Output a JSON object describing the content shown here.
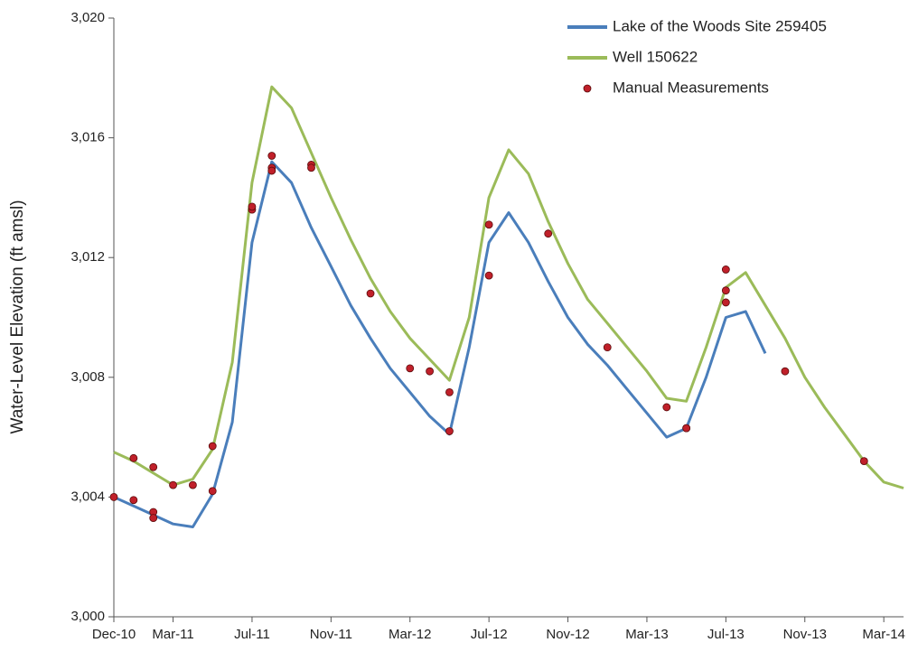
{
  "chart_data": {
    "type": "line",
    "y_label": "Water-Level Elevation (ft amsl)",
    "x": [
      "2010-12",
      "2011-01",
      "2011-02",
      "2011-03",
      "2011-04",
      "2011-05",
      "2011-06",
      "2011-07",
      "2011-08",
      "2011-09",
      "2011-10",
      "2011-11",
      "2011-12",
      "2012-01",
      "2012-02",
      "2012-03",
      "2012-04",
      "2012-05",
      "2012-06",
      "2012-07",
      "2012-08",
      "2012-09",
      "2012-10",
      "2012-11",
      "2012-12",
      "2013-01",
      "2013-02",
      "2013-03",
      "2013-04",
      "2013-05",
      "2013-06",
      "2013-07",
      "2013-08",
      "2013-09",
      "2013-10",
      "2013-11",
      "2013-12",
      "2014-01",
      "2014-02",
      "2014-03",
      "2014-04"
    ],
    "xlim": [
      "2010-12",
      "2014-04"
    ],
    "xticks": [
      {
        "value": "2010-12",
        "label": "Dec-10"
      },
      {
        "value": "2011-03",
        "label": "Mar-11"
      },
      {
        "value": "2011-07",
        "label": "Jul-11"
      },
      {
        "value": "2011-11",
        "label": "Nov-11"
      },
      {
        "value": "2012-03",
        "label": "Mar-12"
      },
      {
        "value": "2012-07",
        "label": "Jul-12"
      },
      {
        "value": "2012-11",
        "label": "Nov-12"
      },
      {
        "value": "2013-03",
        "label": "Mar-13"
      },
      {
        "value": "2013-07",
        "label": "Jul-13"
      },
      {
        "value": "2013-11",
        "label": "Nov-13"
      },
      {
        "value": "2014-03",
        "label": "Mar-14"
      }
    ],
    "ylim": [
      3000,
      3020
    ],
    "yticks": [
      {
        "value": 3000,
        "label": "3,000"
      },
      {
        "value": 3004,
        "label": "3,004"
      },
      {
        "value": 3008,
        "label": "3,008"
      },
      {
        "value": 3012,
        "label": "3,012"
      },
      {
        "value": 3016,
        "label": "3,016"
      },
      {
        "value": 3020,
        "label": "3,020"
      }
    ],
    "legend": "top-right",
    "series": [
      {
        "name": "Lake of the Woods Site 259405",
        "color": "#4a7ebb",
        "values": [
          3004.0,
          3003.7,
          3003.4,
          3003.1,
          3003.0,
          3004.1,
          3006.5,
          3012.5,
          3015.2,
          3014.5,
          3013.0,
          3011.7,
          3010.4,
          3009.3,
          3008.3,
          3007.5,
          3006.7,
          3006.1,
          3009.0,
          3012.5,
          3013.5,
          3012.5,
          3011.2,
          3010.0,
          3009.1,
          3008.4,
          3007.6,
          3006.8,
          3006.0,
          3006.3,
          3008.0,
          3010.0,
          3010.2,
          3008.8,
          null,
          null,
          null,
          null,
          null,
          null,
          null
        ]
      },
      {
        "name": "Well 150622",
        "color": "#9bbb59",
        "values": [
          3005.5,
          3005.2,
          3004.8,
          3004.4,
          3004.6,
          3005.6,
          3008.5,
          3014.5,
          3017.7,
          3017.0,
          3015.5,
          3014.0,
          3012.6,
          3011.3,
          3010.2,
          3009.3,
          3008.6,
          3007.9,
          3010.0,
          3014.0,
          3015.6,
          3014.8,
          3013.2,
          3011.8,
          3010.6,
          3009.8,
          3009.0,
          3008.2,
          3007.3,
          3007.2,
          3009.0,
          3011.0,
          3011.5,
          3010.4,
          3009.3,
          3008.0,
          3007.0,
          3006.1,
          3005.2,
          3004.5,
          3004.3
        ]
      },
      {
        "name": "Manual Measurements",
        "type": "scatter",
        "color": "#c0202a",
        "x": [
          "2010-12",
          "2011-01",
          "2011-01",
          "2011-02",
          "2011-02",
          "2011-02",
          "2011-03",
          "2011-04",
          "2011-05",
          "2011-05",
          "2011-07",
          "2011-07",
          "2011-08",
          "2011-08",
          "2011-08",
          "2011-10",
          "2011-10",
          "2012-01",
          "2012-03",
          "2012-04",
          "2012-05",
          "2012-05",
          "2012-07",
          "2012-07",
          "2012-10",
          "2013-01",
          "2013-04",
          "2013-05",
          "2013-05",
          "2013-07",
          "2013-07",
          "2013-07",
          "2013-10",
          "2014-02"
        ],
        "values": [
          3004.0,
          3003.9,
          3005.3,
          3005.0,
          3003.5,
          3003.3,
          3004.4,
          3004.4,
          3005.7,
          3004.2,
          3013.6,
          3013.7,
          3015.4,
          3015.0,
          3014.9,
          3015.1,
          3015.0,
          3010.8,
          3008.3,
          3008.2,
          3007.5,
          3006.2,
          3013.1,
          3011.4,
          3012.8,
          3009.0,
          3007.0,
          3006.3,
          3006.3,
          3010.9,
          3011.6,
          3010.5,
          3008.2,
          3005.2
        ]
      }
    ]
  }
}
